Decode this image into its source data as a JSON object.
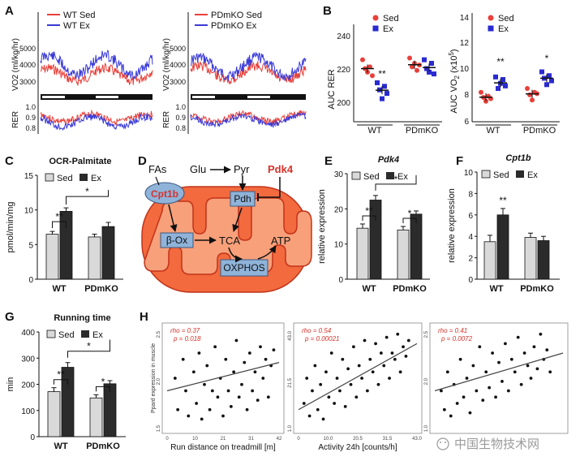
{
  "panels": {
    "A": "A",
    "B": "B",
    "C": "C",
    "D": "D",
    "E": "E",
    "F": "F",
    "G": "G",
    "H": "H"
  },
  "legend": {
    "wt_sed": "WT Sed",
    "wt_ex": "WT Ex",
    "pd_sed": "PDmKO Sed",
    "pd_ex": "PDmKO Ex",
    "sed": "Sed",
    "ex": "Ex"
  },
  "colors": {
    "sed_line": "#e8403a",
    "ex_line": "#3a3ad6",
    "sed_bar": "#d9d9d9",
    "ex_bar": "#2b2b2b",
    "mito_outer": "#f26a3d",
    "mito_inner": "#f7a07a",
    "box": "#8fb3d9",
    "red_text": "#d6322a"
  },
  "groups": [
    "WT",
    "PDmKO"
  ],
  "chart_data": [
    {
      "id": "A-left",
      "type": "line",
      "ylabel": "VO2 (ml/kg/hr)",
      "yticks": [
        "5000",
        "4000",
        "3000"
      ],
      "ylabel2": "RER",
      "yticks2": [
        "1.0",
        "0.9",
        "0.8"
      ],
      "series": [
        {
          "name": "WT Sed"
        },
        {
          "name": "WT Ex"
        }
      ]
    },
    {
      "id": "A-right",
      "type": "line",
      "ylabel": "VO2 (ml/kg/hr)",
      "yticks": [
        "5000",
        "4000",
        "3000"
      ],
      "ylabel2": "RER",
      "yticks2": [
        "1.0",
        "0.9",
        "0.8"
      ],
      "series": [
        {
          "name": "PDmKO Sed"
        },
        {
          "name": "PDmKO Ex"
        }
      ]
    },
    {
      "id": "B-left",
      "type": "scatter",
      "ylabel": "AUC RER",
      "ylim": [
        190,
        245
      ],
      "yticks": [
        "240",
        "220",
        "200"
      ],
      "categories": [
        "WT",
        "PDmKO"
      ],
      "series": [
        {
          "name": "Sed",
          "values": [
            [
              225,
              220,
              218,
              221,
              216
            ],
            [
              226,
              221,
              223,
              219,
              222
            ]
          ]
        },
        {
          "name": "Ex",
          "values": [
            [
              212,
              208,
              203,
              210,
              206
            ],
            [
              225,
              220,
              218,
              223,
              217
            ]
          ]
        }
      ],
      "annotations": [
        "**"
      ]
    },
    {
      "id": "B-right",
      "type": "scatter",
      "ylabel": "AUC VO2 (x10^5)",
      "ylim": [
        6,
        14.5
      ],
      "yticks": [
        "14",
        "12",
        "10",
        "8",
        "6"
      ],
      "categories": [
        "WT",
        "PDmKO"
      ],
      "series": [
        {
          "name": "Sed",
          "values": [
            [
              8.3,
              7.9,
              7.6,
              8.0,
              7.8
            ],
            [
              8.6,
              8.1,
              7.7,
              8.3,
              8.2
            ]
          ]
        },
        {
          "name": "Ex",
          "values": [
            [
              9.5,
              8.6,
              9.0,
              9.3,
              8.8
            ],
            [
              9.9,
              9.4,
              8.9,
              9.6,
              9.2
            ]
          ]
        }
      ],
      "annotations": [
        "**",
        "*"
      ]
    },
    {
      "id": "C",
      "type": "bar",
      "title": "OCR-Palmitate",
      "ylabel": "pmol/min/mg",
      "ylim": [
        0,
        15
      ],
      "yticks": [
        "15",
        "10",
        "5",
        "0"
      ],
      "categories": [
        "WT",
        "PDmKO"
      ],
      "series": [
        {
          "name": "Sed",
          "values": [
            6.5,
            6.1
          ]
        },
        {
          "name": "Ex",
          "values": [
            9.8,
            7.6
          ]
        }
      ],
      "errors": [
        [
          0.4,
          0.4
        ],
        [
          0.5,
          0.6
        ]
      ],
      "annotations": [
        "**",
        "*"
      ]
    },
    {
      "id": "E",
      "type": "bar",
      "title": "Pdk4",
      "ylabel": "relative expression",
      "ylim": [
        0,
        30
      ],
      "yticks": [
        "30",
        "20",
        "10",
        "0"
      ],
      "categories": [
        "WT",
        "PDmKO"
      ],
      "series": [
        {
          "name": "Sed",
          "values": [
            14.5,
            14.0
          ]
        },
        {
          "name": "Ex",
          "values": [
            22.5,
            18.5
          ]
        }
      ],
      "errors": [
        [
          1.2,
          1.0
        ],
        [
          1.3,
          0.9
        ]
      ],
      "annotations": [
        "**",
        "*",
        "*"
      ]
    },
    {
      "id": "F",
      "type": "bar",
      "title": "Cpt1b",
      "ylabel": "relative expression",
      "ylim": [
        0,
        10
      ],
      "yticks": [
        "10",
        "8",
        "6",
        "4",
        "2",
        "0"
      ],
      "categories": [
        "WT",
        "PDmKO"
      ],
      "series": [
        {
          "name": "Sed",
          "values": [
            3.5,
            3.9
          ]
        },
        {
          "name": "Ex",
          "values": [
            6.0,
            3.6
          ]
        }
      ],
      "errors": [
        [
          0.6,
          0.4
        ],
        [
          0.6,
          0.4
        ]
      ],
      "annotations": [
        "**"
      ]
    },
    {
      "id": "G",
      "type": "bar",
      "title": "Running time",
      "ylabel": "min",
      "ylim": [
        0,
        400
      ],
      "yticks": [
        "400",
        "300",
        "200",
        "100",
        "0"
      ],
      "categories": [
        "WT",
        "PDmKO"
      ],
      "series": [
        {
          "name": "Sed",
          "values": [
            172,
            148
          ]
        },
        {
          "name": "Ex",
          "values": [
            265,
            202
          ]
        }
      ],
      "errors": [
        [
          15,
          12
        ],
        [
          18,
          12
        ]
      ],
      "annotations": [
        "**",
        "*",
        "*"
      ]
    },
    {
      "id": "H1",
      "type": "scatter",
      "xlabel": "Run distance on treadmill [m]",
      "ylabel": "Ppard expression in muscle",
      "xticks": [
        "0",
        "10",
        "21",
        "31",
        "42"
      ],
      "yticks": [
        "1.5",
        "2.0",
        "2.5"
      ],
      "stats": [
        "rho = 0.37",
        "p = 0.018"
      ],
      "points": [
        [
          3,
          2.2
        ],
        [
          4,
          1.7
        ],
        [
          6,
          2.5
        ],
        [
          7,
          2.0
        ],
        [
          8,
          1.6
        ],
        [
          10,
          2.3
        ],
        [
          11,
          1.8
        ],
        [
          12,
          2.6
        ],
        [
          13,
          1.55
        ],
        [
          14,
          2.1
        ],
        [
          15,
          2.4
        ],
        [
          16,
          1.7
        ],
        [
          17,
          2.0
        ],
        [
          18,
          2.7
        ],
        [
          19,
          1.9
        ],
        [
          20,
          2.2
        ],
        [
          21,
          1.6
        ],
        [
          22,
          2.5
        ],
        [
          23,
          2.0
        ],
        [
          24,
          1.75
        ],
        [
          25,
          2.3
        ],
        [
          26,
          2.8
        ],
        [
          27,
          1.9
        ],
        [
          28,
          2.1
        ],
        [
          29,
          2.45
        ],
        [
          30,
          1.7
        ],
        [
          31,
          2.6
        ],
        [
          32,
          2.0
        ],
        [
          33,
          2.3
        ],
        [
          34,
          1.85
        ],
        [
          35,
          2.7
        ],
        [
          36,
          2.2
        ],
        [
          37,
          2.5
        ],
        [
          38,
          1.9
        ],
        [
          39,
          2.4
        ],
        [
          40,
          2.65
        ]
      ],
      "fit": [
        [
          0,
          2.0
        ],
        [
          42,
          2.45
        ]
      ]
    },
    {
      "id": "H2",
      "type": "scatter",
      "xlabel": "Activity 24h [counts/h]",
      "xticks": [
        "0",
        "10.0",
        "20.5",
        "31.5",
        "43.0"
      ],
      "yticks": [
        "1.0",
        "21.5",
        "43.0"
      ],
      "stats": [
        "rho = 0.54",
        "p = 0.00021"
      ],
      "points": [
        [
          2,
          1.8
        ],
        [
          3,
          2.2
        ],
        [
          4,
          1.6
        ],
        [
          5,
          2.0
        ],
        [
          6,
          2.4
        ],
        [
          7,
          1.7
        ],
        [
          8,
          2.1
        ],
        [
          9,
          1.55
        ],
        [
          10,
          2.3
        ],
        [
          11,
          1.9
        ],
        [
          12,
          2.6
        ],
        [
          13,
          1.8
        ],
        [
          14,
          2.2
        ],
        [
          15,
          2.0
        ],
        [
          16,
          2.5
        ],
        [
          17,
          1.75
        ],
        [
          18,
          2.35
        ],
        [
          19,
          2.1
        ],
        [
          20,
          2.7
        ],
        [
          21,
          1.9
        ],
        [
          22,
          2.4
        ],
        [
          23,
          2.2
        ],
        [
          24,
          2.8
        ],
        [
          25,
          2.0
        ],
        [
          26,
          2.5
        ],
        [
          27,
          2.3
        ],
        [
          28,
          2.75
        ],
        [
          29,
          2.1
        ],
        [
          30,
          2.6
        ],
        [
          31,
          2.4
        ],
        [
          32,
          2.85
        ],
        [
          33,
          2.2
        ],
        [
          34,
          2.6
        ],
        [
          35,
          2.5
        ],
        [
          36,
          2.9
        ],
        [
          37,
          2.3
        ],
        [
          38,
          2.7
        ],
        [
          39,
          2.55
        ],
        [
          40,
          2.8
        ]
      ],
      "fit": [
        [
          0,
          1.7
        ],
        [
          43,
          2.75
        ]
      ]
    },
    {
      "id": "H3",
      "type": "scatter",
      "xlabel": "",
      "yticks": [
        "1.0",
        "2.0",
        "2.5"
      ],
      "stats": [
        "rho = 0.41",
        "p = 0.0072"
      ],
      "points": [
        [
          2,
          2.0
        ],
        [
          3,
          1.7
        ],
        [
          4,
          2.3
        ],
        [
          5,
          1.6
        ],
        [
          6,
          2.1
        ],
        [
          7,
          1.8
        ],
        [
          8,
          2.5
        ],
        [
          9,
          1.9
        ],
        [
          10,
          2.2
        ],
        [
          11,
          1.65
        ],
        [
          12,
          2.4
        ],
        [
          13,
          2.0
        ],
        [
          14,
          2.7
        ],
        [
          15,
          1.85
        ],
        [
          16,
          2.3
        ],
        [
          17,
          2.05
        ],
        [
          18,
          2.6
        ],
        [
          19,
          1.9
        ],
        [
          20,
          2.45
        ],
        [
          21,
          2.15
        ],
        [
          22,
          2.75
        ],
        [
          23,
          2.0
        ],
        [
          24,
          2.5
        ],
        [
          25,
          2.3
        ],
        [
          26,
          2.85
        ],
        [
          27,
          2.1
        ],
        [
          28,
          2.6
        ],
        [
          29,
          2.4
        ],
        [
          30,
          2.2
        ],
        [
          31,
          2.7
        ],
        [
          32,
          2.35
        ],
        [
          33,
          2.9
        ],
        [
          34,
          2.5
        ],
        [
          35,
          2.65
        ],
        [
          36,
          2.3
        ]
      ],
      "fit": [
        [
          0,
          2.0
        ],
        [
          40,
          2.6
        ]
      ]
    }
  ],
  "diagram": {
    "fas": "FAs",
    "glu": "Glu",
    "pyr": "Pyr",
    "pdk4": "Pdk4",
    "cpt1b": "Cpt1b",
    "pdh": "Pdh",
    "box": "β-Ox",
    "tca": "TCA",
    "atp": "ATP",
    "oxphos": "OXPHOS"
  },
  "watermark": "中国生物技术网"
}
